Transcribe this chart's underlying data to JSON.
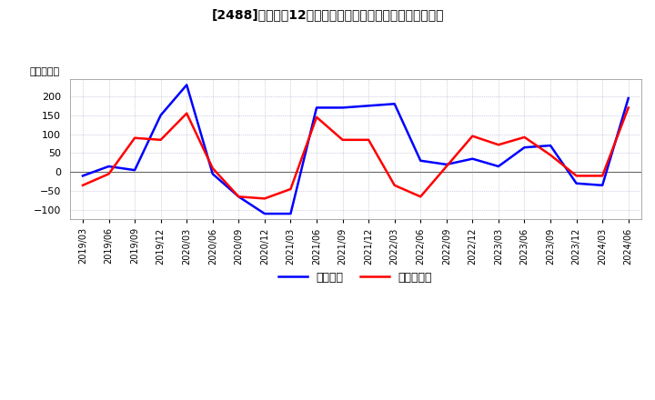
{
  "title_display": "[2488]　利益だ12か月移動合計の対前年同期増減額の推移",
  "ylabel": "（百万円）",
  "legend_entries": [
    "経常利益",
    "当期純利益"
  ],
  "line_colors": [
    "#0000ff",
    "#ff0000"
  ],
  "background_color": "#ffffff",
  "plot_bg_color": "#ffffff",
  "grid_color": "#aaaacc",
  "ylim": [
    -125,
    245
  ],
  "yticks": [
    -100,
    -50,
    0,
    50,
    100,
    150,
    200
  ],
  "dates": [
    "2019/03",
    "2019/06",
    "2019/09",
    "2019/12",
    "2020/03",
    "2020/06",
    "2020/09",
    "2020/12",
    "2021/03",
    "2021/06",
    "2021/09",
    "2021/12",
    "2022/03",
    "2022/06",
    "2022/09",
    "2022/12",
    "2023/03",
    "2023/06",
    "2023/09",
    "2023/12",
    "2024/03",
    "2024/06"
  ],
  "keijo_rieki": [
    -10,
    15,
    5,
    150,
    230,
    -5,
    -65,
    -110,
    -110,
    170,
    170,
    175,
    180,
    30,
    20,
    35,
    15,
    65,
    70,
    -30,
    -35,
    195
  ],
  "touki_junieki": [
    -35,
    -5,
    90,
    85,
    155,
    10,
    -65,
    -70,
    -45,
    145,
    85,
    85,
    -35,
    -65,
    15,
    95,
    72,
    92,
    45,
    -10,
    -10,
    170
  ]
}
